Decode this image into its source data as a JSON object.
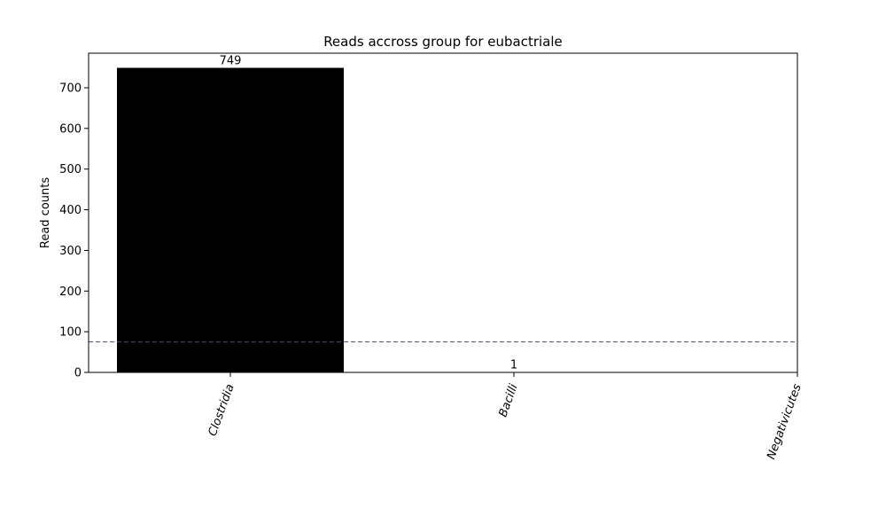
{
  "chart_data": {
    "type": "bar",
    "title": "Reads accross group for eubactriale",
    "xlabel": "",
    "ylabel": "Read counts",
    "categories": [
      "Clostridia",
      "Bacilli",
      "Negativicutes"
    ],
    "values": [
      749,
      1,
      0
    ],
    "data_labels": [
      "749",
      "1",
      ""
    ],
    "ylim": [
      0,
      785
    ],
    "yticks": [
      0,
      100,
      200,
      300,
      400,
      500,
      600,
      700
    ],
    "threshold": 75,
    "bar_color": "#000000",
    "threshold_color": "#4a4a6a",
    "x_tick_rotation": -70
  }
}
